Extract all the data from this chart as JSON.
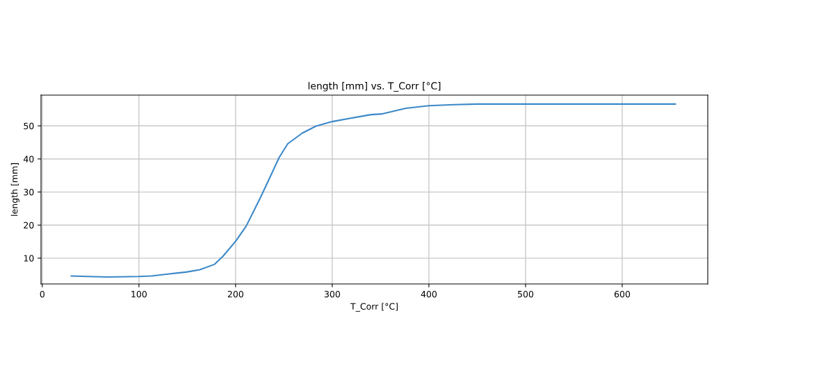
{
  "chart_data": {
    "type": "line",
    "title": "length [mm] vs. T_Corr [°C]",
    "xlabel": "T_Corr [°C]",
    "ylabel": "length [mm]",
    "series": [
      {
        "color": "#3a88c8",
        "x": [
          30,
          53,
          68,
          100,
          113,
          130,
          149,
          163,
          178,
          187,
          200,
          211,
          226,
          235,
          245,
          254,
          269,
          283,
          300,
          319,
          340,
          351,
          376,
          400,
          426,
          451,
          500,
          560,
          655
        ],
        "values": [
          4.6,
          4.4,
          4.3,
          4.45,
          4.6,
          5.2,
          5.8,
          6.5,
          8.1,
          10.6,
          15.1,
          19.7,
          28.5,
          34.1,
          40.4,
          44.6,
          47.8,
          49.9,
          51.3,
          52.3,
          53.4,
          53.6,
          55.3,
          56.1,
          56.4,
          56.6,
          56.6,
          56.6,
          56.6
        ]
      }
    ],
    "xlim": [
      -1.3,
      688.5
    ],
    "ylim": [
      2.2,
      59.3
    ],
    "xticks": [
      0,
      100,
      200,
      300,
      400,
      500,
      600
    ],
    "yticks": [
      10,
      20,
      30,
      40,
      50
    ],
    "grid": true
  }
}
